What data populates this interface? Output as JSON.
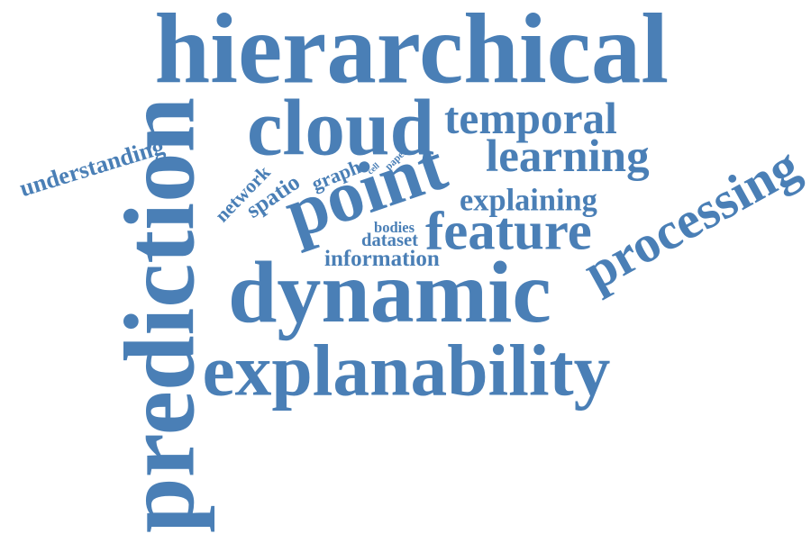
{
  "accent_color": "#4a7fb6",
  "words": [
    {
      "id": "hierarchical",
      "text": "hierarchical"
    },
    {
      "id": "cloud",
      "text": "cloud"
    },
    {
      "id": "temporal",
      "text": "temporal"
    },
    {
      "id": "learning",
      "text": "learning"
    },
    {
      "id": "understanding",
      "text": "understanding"
    },
    {
      "id": "prediction",
      "text": "prediction"
    },
    {
      "id": "network",
      "text": "network"
    },
    {
      "id": "spatio",
      "text": "spatio"
    },
    {
      "id": "graph",
      "text": "graph"
    },
    {
      "id": "cell",
      "text": "cell"
    },
    {
      "id": "paper",
      "text": "paper"
    },
    {
      "id": "point",
      "text": "point"
    },
    {
      "id": "explaining",
      "text": "explaining"
    },
    {
      "id": "bodies",
      "text": "bodies"
    },
    {
      "id": "dataset",
      "text": "dataset"
    },
    {
      "id": "feature",
      "text": "feature"
    },
    {
      "id": "information",
      "text": "information"
    },
    {
      "id": "processing",
      "text": "processing"
    },
    {
      "id": "dynamic",
      "text": "dynamic"
    },
    {
      "id": "explanability",
      "text": "explanability"
    }
  ]
}
